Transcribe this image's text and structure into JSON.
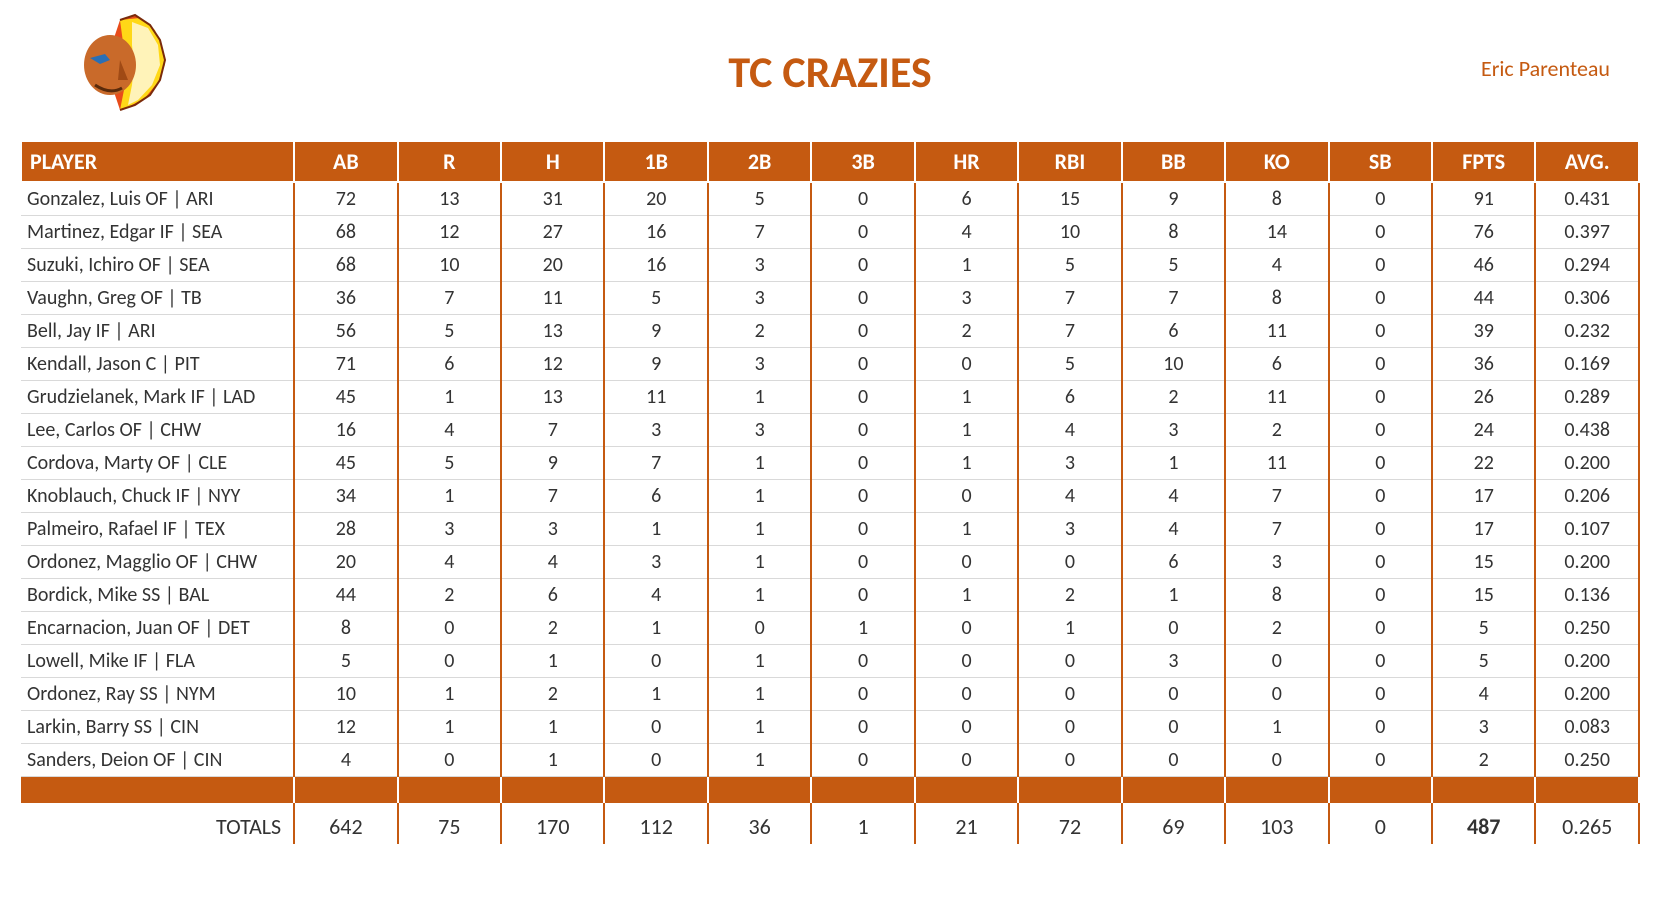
{
  "team_title": "TC CRAZIES",
  "author": "Eric Parenteau",
  "accent_color": "#c55a11",
  "columns": [
    "PLAYER",
    "AB",
    "R",
    "H",
    "1B",
    "2B",
    "3B",
    "HR",
    "RBI",
    "BB",
    "KO",
    "SB",
    "FPTS",
    "AVG."
  ],
  "rows": [
    {
      "player": "Gonzalez, Luis OF | ARI",
      "ab": "72",
      "r": "13",
      "h": "31",
      "b1": "20",
      "b2": "5",
      "b3": "0",
      "hr": "6",
      "rbi": "15",
      "bb": "9",
      "ko": "8",
      "sb": "0",
      "fpts": "91",
      "avg": "0.431"
    },
    {
      "player": "Martinez, Edgar IF | SEA",
      "ab": "68",
      "r": "12",
      "h": "27",
      "b1": "16",
      "b2": "7",
      "b3": "0",
      "hr": "4",
      "rbi": "10",
      "bb": "8",
      "ko": "14",
      "sb": "0",
      "fpts": "76",
      "avg": "0.397"
    },
    {
      "player": "Suzuki, Ichiro OF | SEA",
      "ab": "68",
      "r": "10",
      "h": "20",
      "b1": "16",
      "b2": "3",
      "b3": "0",
      "hr": "1",
      "rbi": "5",
      "bb": "5",
      "ko": "4",
      "sb": "0",
      "fpts": "46",
      "avg": "0.294"
    },
    {
      "player": "Vaughn, Greg OF | TB",
      "ab": "36",
      "r": "7",
      "h": "11",
      "b1": "5",
      "b2": "3",
      "b3": "0",
      "hr": "3",
      "rbi": "7",
      "bb": "7",
      "ko": "8",
      "sb": "0",
      "fpts": "44",
      "avg": "0.306"
    },
    {
      "player": "Bell, Jay IF | ARI",
      "ab": "56",
      "r": "5",
      "h": "13",
      "b1": "9",
      "b2": "2",
      "b3": "0",
      "hr": "2",
      "rbi": "7",
      "bb": "6",
      "ko": "11",
      "sb": "0",
      "fpts": "39",
      "avg": "0.232"
    },
    {
      "player": "Kendall, Jason C | PIT",
      "ab": "71",
      "r": "6",
      "h": "12",
      "b1": "9",
      "b2": "3",
      "b3": "0",
      "hr": "0",
      "rbi": "5",
      "bb": "10",
      "ko": "6",
      "sb": "0",
      "fpts": "36",
      "avg": "0.169"
    },
    {
      "player": "Grudzielanek, Mark IF | LAD",
      "ab": "45",
      "r": "1",
      "h": "13",
      "b1": "11",
      "b2": "1",
      "b3": "0",
      "hr": "1",
      "rbi": "6",
      "bb": "2",
      "ko": "11",
      "sb": "0",
      "fpts": "26",
      "avg": "0.289"
    },
    {
      "player": "Lee, Carlos OF | CHW",
      "ab": "16",
      "r": "4",
      "h": "7",
      "b1": "3",
      "b2": "3",
      "b3": "0",
      "hr": "1",
      "rbi": "4",
      "bb": "3",
      "ko": "2",
      "sb": "0",
      "fpts": "24",
      "avg": "0.438"
    },
    {
      "player": "Cordova, Marty OF | CLE",
      "ab": "45",
      "r": "5",
      "h": "9",
      "b1": "7",
      "b2": "1",
      "b3": "0",
      "hr": "1",
      "rbi": "3",
      "bb": "1",
      "ko": "11",
      "sb": "0",
      "fpts": "22",
      "avg": "0.200"
    },
    {
      "player": "Knoblauch, Chuck IF | NYY",
      "ab": "34",
      "r": "1",
      "h": "7",
      "b1": "6",
      "b2": "1",
      "b3": "0",
      "hr": "0",
      "rbi": "4",
      "bb": "4",
      "ko": "7",
      "sb": "0",
      "fpts": "17",
      "avg": "0.206"
    },
    {
      "player": "Palmeiro, Rafael IF | TEX",
      "ab": "28",
      "r": "3",
      "h": "3",
      "b1": "1",
      "b2": "1",
      "b3": "0",
      "hr": "1",
      "rbi": "3",
      "bb": "4",
      "ko": "7",
      "sb": "0",
      "fpts": "17",
      "avg": "0.107"
    },
    {
      "player": "Ordonez, Magglio OF | CHW",
      "ab": "20",
      "r": "4",
      "h": "4",
      "b1": "3",
      "b2": "1",
      "b3": "0",
      "hr": "0",
      "rbi": "0",
      "bb": "6",
      "ko": "3",
      "sb": "0",
      "fpts": "15",
      "avg": "0.200"
    },
    {
      "player": "Bordick, Mike SS | BAL",
      "ab": "44",
      "r": "2",
      "h": "6",
      "b1": "4",
      "b2": "1",
      "b3": "0",
      "hr": "1",
      "rbi": "2",
      "bb": "1",
      "ko": "8",
      "sb": "0",
      "fpts": "15",
      "avg": "0.136"
    },
    {
      "player": "Encarnacion, Juan OF | DET",
      "ab": "8",
      "r": "0",
      "h": "2",
      "b1": "1",
      "b2": "0",
      "b3": "1",
      "hr": "0",
      "rbi": "1",
      "bb": "0",
      "ko": "2",
      "sb": "0",
      "fpts": "5",
      "avg": "0.250"
    },
    {
      "player": "Lowell, Mike IF | FLA",
      "ab": "5",
      "r": "0",
      "h": "1",
      "b1": "0",
      "b2": "1",
      "b3": "0",
      "hr": "0",
      "rbi": "0",
      "bb": "3",
      "ko": "0",
      "sb": "0",
      "fpts": "5",
      "avg": "0.200"
    },
    {
      "player": "Ordonez, Ray SS | NYM",
      "ab": "10",
      "r": "1",
      "h": "2",
      "b1": "1",
      "b2": "1",
      "b3": "0",
      "hr": "0",
      "rbi": "0",
      "bb": "0",
      "ko": "0",
      "sb": "0",
      "fpts": "4",
      "avg": "0.200"
    },
    {
      "player": "Larkin, Barry SS | CIN",
      "ab": "12",
      "r": "1",
      "h": "1",
      "b1": "0",
      "b2": "1",
      "b3": "0",
      "hr": "0",
      "rbi": "0",
      "bb": "0",
      "ko": "1",
      "sb": "0",
      "fpts": "3",
      "avg": "0.083"
    },
    {
      "player": "Sanders, Deion OF | CIN",
      "ab": "4",
      "r": "0",
      "h": "1",
      "b1": "0",
      "b2": "1",
      "b3": "0",
      "hr": "0",
      "rbi": "0",
      "bb": "0",
      "ko": "0",
      "sb": "0",
      "fpts": "2",
      "avg": "0.250"
    }
  ],
  "totals": {
    "label": "TOTALS",
    "ab": "642",
    "r": "75",
    "h": "170",
    "b1": "112",
    "b2": "36",
    "b3": "1",
    "hr": "21",
    "rbi": "72",
    "bb": "69",
    "ko": "103",
    "sb": "0",
    "fpts": "487",
    "avg": "0.265"
  }
}
